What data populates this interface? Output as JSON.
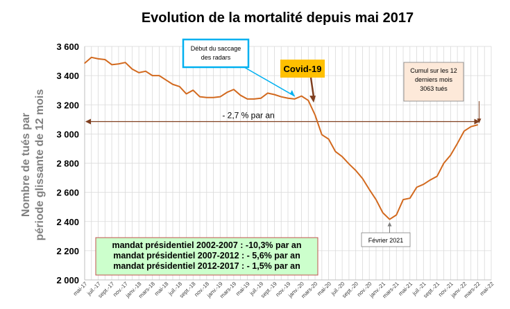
{
  "chart_data": {
    "type": "line",
    "title": "Evolution de la mortalité depuis mai 2017",
    "ylabel_line1": "Nombre de tués par",
    "ylabel_line2": "période  glissante de 12 mois",
    "ylim": [
      2000,
      3600
    ],
    "yticks": [
      2000,
      2200,
      2400,
      2600,
      2800,
      3000,
      3200,
      3400,
      3600
    ],
    "ytick_labels": [
      "2 000",
      "2 200",
      "2 400",
      "2 600",
      "2 800",
      "3 000",
      "3 200",
      "3 400",
      "3 600"
    ],
    "grid": true,
    "xtick_labels": [
      "mai-17",
      "juil.-17",
      "sept.-17",
      "nov.-17",
      "janv.-18",
      "mars-18",
      "mai-18",
      "juil.-18",
      "sept.-18",
      "nov.-18",
      "janv.-19",
      "mars-19",
      "mai-19",
      "juil.-19",
      "sept.-19",
      "nov.-19",
      "janv.-20",
      "mars-20",
      "mai-20",
      "juil.-20",
      "sept.-20",
      "nov.-20",
      "janv.-21",
      "mars-21",
      "mai-21",
      "juil.-21",
      "sept.-21",
      "nov.-21",
      "janv.-22",
      "mars-22",
      "mai-22"
    ],
    "series": [
      {
        "color": "#d2691e",
        "x": [
          "mai-17",
          "juin-17",
          "juil.-17",
          "août-17",
          "sept.-17",
          "oct.-17",
          "nov.-17",
          "déc.-17",
          "janv.-18",
          "févr.-18",
          "mars-18",
          "avr.-18",
          "mai-18",
          "juin-18",
          "juil.-18",
          "août-18",
          "sept.-18",
          "oct.-18",
          "nov.-18",
          "déc.-18",
          "janv.-19",
          "févr.-19",
          "mars-19",
          "avr.-19",
          "mai-19",
          "juin-19",
          "juil.-19",
          "août-19",
          "sept.-19",
          "oct.-19",
          "nov.-19",
          "déc.-19",
          "janv.-20",
          "févr.-20",
          "mars-20",
          "avr.-20",
          "mai-20",
          "juin-20",
          "juil.-20",
          "août-20",
          "sept.-20",
          "oct.-20",
          "nov.-20",
          "déc.-20",
          "janv.-21",
          "févr.-21",
          "mars-21",
          "avr.-21",
          "mai-21",
          "juin-21",
          "juil.-21",
          "août-21",
          "sept.-21",
          "oct.-21",
          "nov.-21",
          "déc.-21",
          "janv.-22",
          "févr.-22",
          "mars-22"
        ],
        "values": [
          3485,
          3525,
          3515,
          3510,
          3475,
          3480,
          3490,
          3445,
          3420,
          3430,
          3400,
          3400,
          3370,
          3340,
          3325,
          3275,
          3300,
          3255,
          3250,
          3250,
          3255,
          3285,
          3305,
          3265,
          3240,
          3240,
          3245,
          3280,
          3270,
          3255,
          3245,
          3240,
          3260,
          3230,
          3130,
          2995,
          2965,
          2880,
          2845,
          2795,
          2750,
          2695,
          2620,
          2550,
          2460,
          2415,
          2445,
          2550,
          2560,
          2635,
          2655,
          2685,
          2710,
          2800,
          2855,
          2935,
          3020,
          3050,
          3063
        ]
      }
    ],
    "trend": {
      "label": "- 2,7 % par an",
      "y": 3085,
      "x_start": "mai-17",
      "x_end": "mars-22"
    },
    "annotations": {
      "radars": {
        "lines": [
          "Début du saccage",
          "des radars"
        ],
        "border_color": "#00b0f0",
        "target_x": "déc.-19"
      },
      "covid": {
        "label": "Covid-19",
        "fill_color": "#ffc000",
        "target_x": "mars-20"
      },
      "cumul": {
        "lines": [
          "Cumul sur les 12",
          "derniers mois",
          "3063 tués"
        ],
        "fill_color": "#fde9d9",
        "target_x": "mars-22"
      },
      "fevrier": {
        "label": "Février 2021",
        "target_x": "févr.-21"
      },
      "mandats": {
        "lines": [
          "mandat présidentiel 2002-2007 : -10,3% par an",
          "mandat présidentiel 2007-2012 : - 5,6% par an",
          "mandat présidentiel 2012-2017 : - 1,5% par an"
        ],
        "fill_color": "#ccffcc",
        "border_color": "#c0504d"
      }
    }
  }
}
